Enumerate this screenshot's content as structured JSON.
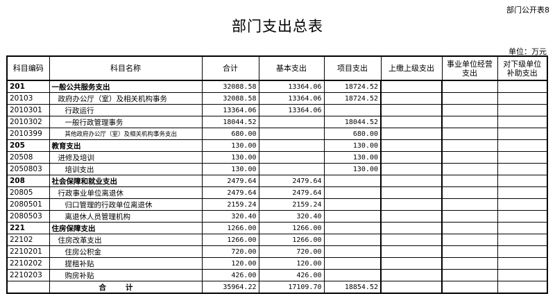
{
  "header": {
    "code": "部门公开表8",
    "title": "部门支出总表",
    "unit": "单位：万元"
  },
  "columns": [
    "科目编码",
    "科目名称",
    "合计",
    "基本支出",
    "项目支出",
    "上缴上级支出",
    "事业单位经营支出",
    "对下级单位补助支出"
  ],
  "rows": [
    {
      "code": "201",
      "name": "一般公共服务支出",
      "level": 0,
      "total": "32088.58",
      "basic": "13364.06",
      "project": "18724.52"
    },
    {
      "code": "20103",
      "name": "政府办公厅（室）及相关机构事务",
      "level": 1,
      "total": "32088.58",
      "basic": "13364.06",
      "project": "18724.52"
    },
    {
      "code": "2010301",
      "name": "行政运行",
      "level": 2,
      "total": "13364.06",
      "basic": "13364.06",
      "project": ""
    },
    {
      "code": "2010302",
      "name": "一般行政管理事务",
      "level": 2,
      "total": "18044.52",
      "basic": "",
      "project": "18044.52"
    },
    {
      "code": "2010399",
      "name": "其他政府办公厅（室）及相关机构事务支出",
      "level": 2,
      "small": true,
      "total": "680.00",
      "basic": "",
      "project": "680.00"
    },
    {
      "code": "205",
      "name": "教育支出",
      "level": 0,
      "total": "130.00",
      "basic": "",
      "project": "130.00"
    },
    {
      "code": "20508",
      "name": "进修及培训",
      "level": 1,
      "total": "130.00",
      "basic": "",
      "project": "130.00"
    },
    {
      "code": "2050803",
      "name": "培训支出",
      "level": 2,
      "total": "130.00",
      "basic": "",
      "project": "130.00"
    },
    {
      "code": "208",
      "name": "社会保障和就业支出",
      "level": 0,
      "total": "2479.64",
      "basic": "2479.64",
      "project": ""
    },
    {
      "code": "20805",
      "name": "行政事业单位离退休",
      "level": 1,
      "total": "2479.64",
      "basic": "2479.64",
      "project": ""
    },
    {
      "code": "2080501",
      "name": "归口管理的行政单位离退休",
      "level": 2,
      "total": "2159.24",
      "basic": "2159.24",
      "project": ""
    },
    {
      "code": "2080503",
      "name": "离退休人员管理机构",
      "level": 2,
      "total": "320.40",
      "basic": "320.40",
      "project": ""
    },
    {
      "code": "221",
      "name": "住房保障支出",
      "level": 0,
      "total": "1266.00",
      "basic": "1266.00",
      "project": ""
    },
    {
      "code": "22102",
      "name": "住房改革支出",
      "level": 1,
      "total": "1266.00",
      "basic": "1266.00",
      "project": ""
    },
    {
      "code": "2210201",
      "name": "住房公积金",
      "level": 2,
      "total": "720.00",
      "basic": "720.00",
      "project": ""
    },
    {
      "code": "2210202",
      "name": "提租补贴",
      "level": 2,
      "total": "120.00",
      "basic": "120.00",
      "project": ""
    },
    {
      "code": "2210203",
      "name": "购房补贴",
      "level": 2,
      "total": "426.00",
      "basic": "426.00",
      "project": ""
    }
  ],
  "total_row": {
    "label": "合计",
    "total": "35964.22",
    "basic": "17109.70",
    "project": "18854.52"
  }
}
